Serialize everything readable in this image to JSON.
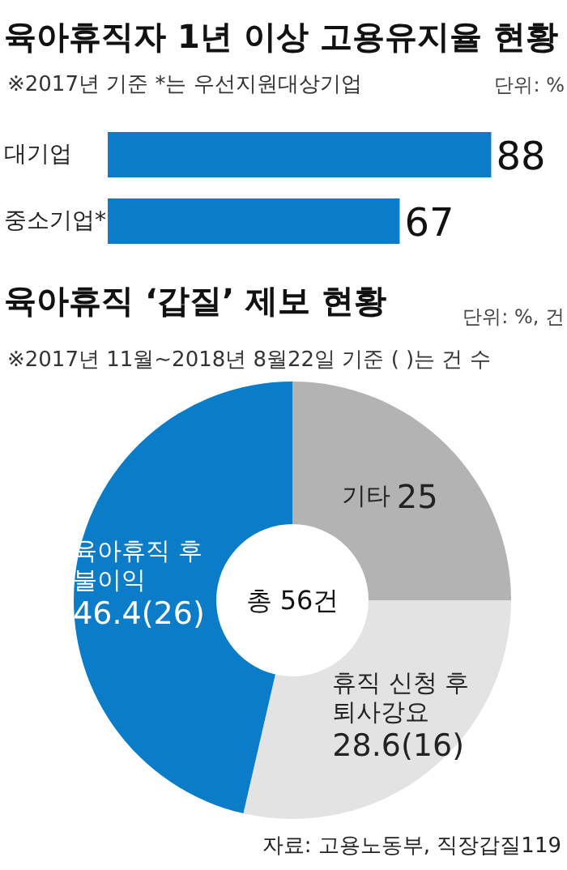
{
  "chart_data": [
    {
      "type": "bar",
      "orientation": "horizontal",
      "title": "육아휴직자 1년 이상 고용유지율 현황",
      "subtitle": "※2017년 기준 *는 우선지원대상기업",
      "annotations": [
        "단위: %"
      ],
      "categories": [
        "대기업",
        "중소기업*"
      ],
      "values": [
        88,
        67
      ],
      "color": "#0a7cc8",
      "data_labels": true
    },
    {
      "type": "donut",
      "title": "육아휴직 ‘갑질’ 제보 현황",
      "subtitle": "※2017년 11월~2018년 8월22일 기준 ( )는 건 수",
      "annotations": [
        "단위: %, 건",
        "총 56건",
        "자료: 고용노동부, 직장갑질119"
      ],
      "categories": [
        "기타",
        "휴직 신청 후 퇴사강요",
        "육아휴직 후 불이익"
      ],
      "values": [
        25,
        28.6,
        46.4
      ],
      "colors": [
        "#b3b3b3",
        "#e3e3e3",
        "#0a7cc8"
      ],
      "value_labels": [
        "25",
        "28.6(16)",
        "46.4(26)"
      ]
    }
  ]
}
